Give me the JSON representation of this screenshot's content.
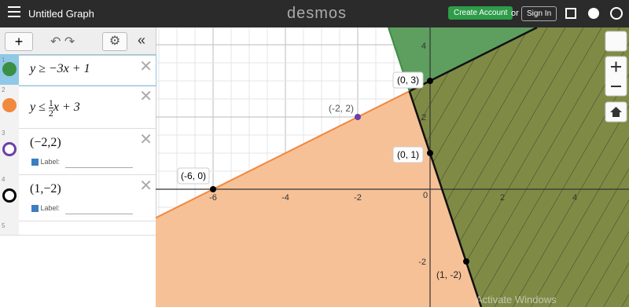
{
  "header": {
    "title": "Untitled Graph",
    "logo": "desmos",
    "create_account": "Create Account",
    "or": "or",
    "sign_in": "Sign In"
  },
  "expressions": [
    {
      "index": "1",
      "text": "y ≥ −3x + 1"
    },
    {
      "index": "2",
      "before": "y ≤ ",
      "num": "1",
      "den": "2",
      "after": "x + 3"
    },
    {
      "index": "3",
      "text": "(−2,2)",
      "label": "Label:"
    },
    {
      "index": "4",
      "text": "(1,−2)",
      "label": "Label:"
    },
    {
      "index": "5"
    }
  ],
  "graph": {
    "x_ticks": [
      "-6",
      "-4",
      "-2",
      "0",
      "2",
      "4"
    ],
    "y_ticks": [
      "4",
      "2",
      "-2"
    ],
    "points": [
      "(-6, 0)",
      "(-2, 2)",
      "(0, 3)",
      "(0, 1)",
      "(1, -2)"
    ],
    "watermark": "Activate Windows"
  }
}
